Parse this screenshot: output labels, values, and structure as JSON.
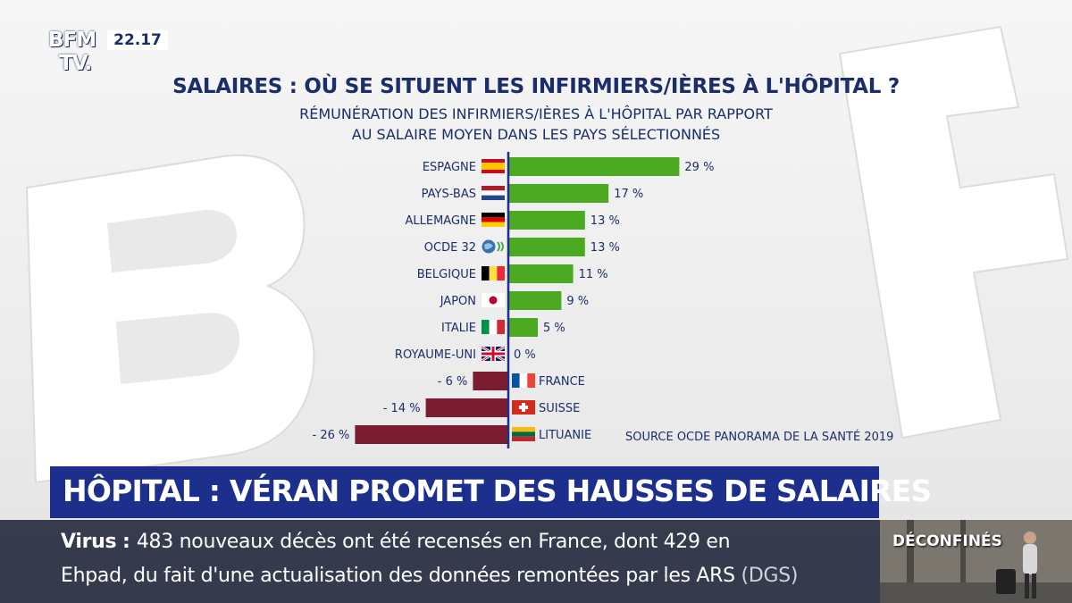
{
  "channel": {
    "logo_line1": "BFM",
    "logo_line2": "TV.",
    "clock": "22.17"
  },
  "chart_data": {
    "type": "bar",
    "title": "SALAIRES : OÙ SE SITUENT LES INFIRMIERS/IÈRES À L'HÔPITAL ?",
    "subtitle_line1": "RÉMUNÉRATION DES INFIRMIERS/IÈRES À L'HÔPITAL PAR RAPPORT",
    "subtitle_line2": "AU SALAIRE MOYEN DANS LES PAYS SÉLECTIONNÉS",
    "categories": [
      "ESPAGNE",
      "PAYS-BAS",
      "ALLEMAGNE",
      "OCDE 32",
      "BELGIQUE",
      "JAPON",
      "ITALIE",
      "ROYAUME-UNI",
      "FRANCE",
      "SUISSE",
      "LITUANIE"
    ],
    "values": [
      29,
      17,
      13,
      13,
      11,
      9,
      5,
      0,
      -6,
      -14,
      -26
    ],
    "value_labels": [
      "29 %",
      "17 %",
      "13 %",
      "13 %",
      "11 %",
      "9 %",
      "5 %",
      "0 %",
      "- 6 %",
      "- 14 %",
      "- 26 %"
    ],
    "flags": [
      "spain",
      "netherlands",
      "germany",
      "oecd",
      "belgium",
      "japan",
      "italy",
      "united-kingdom",
      "france",
      "switzerland",
      "lithuania"
    ],
    "colors": {
      "positive": "#4caa22",
      "negative": "#7a1d31",
      "axis": "#1d2f8c"
    },
    "source_prefix": "SOURCE",
    "source_text": "OCDE PANORAMA DE LA SANTÉ 2019"
  },
  "banner": {
    "headline": "HÔPITAL : VÉRAN PROMET DES HAUSSES DE SALAIRES"
  },
  "ticker": {
    "label": "Virus",
    "line1": "483 nouveaux décès ont été recensés en France, dont 429 en",
    "line2": "Ehpad, du fait d'une actualisation des données remontées par les ARS",
    "source": "(DGS)"
  },
  "side_panel": {
    "label": "DÉCONFINÉS"
  }
}
